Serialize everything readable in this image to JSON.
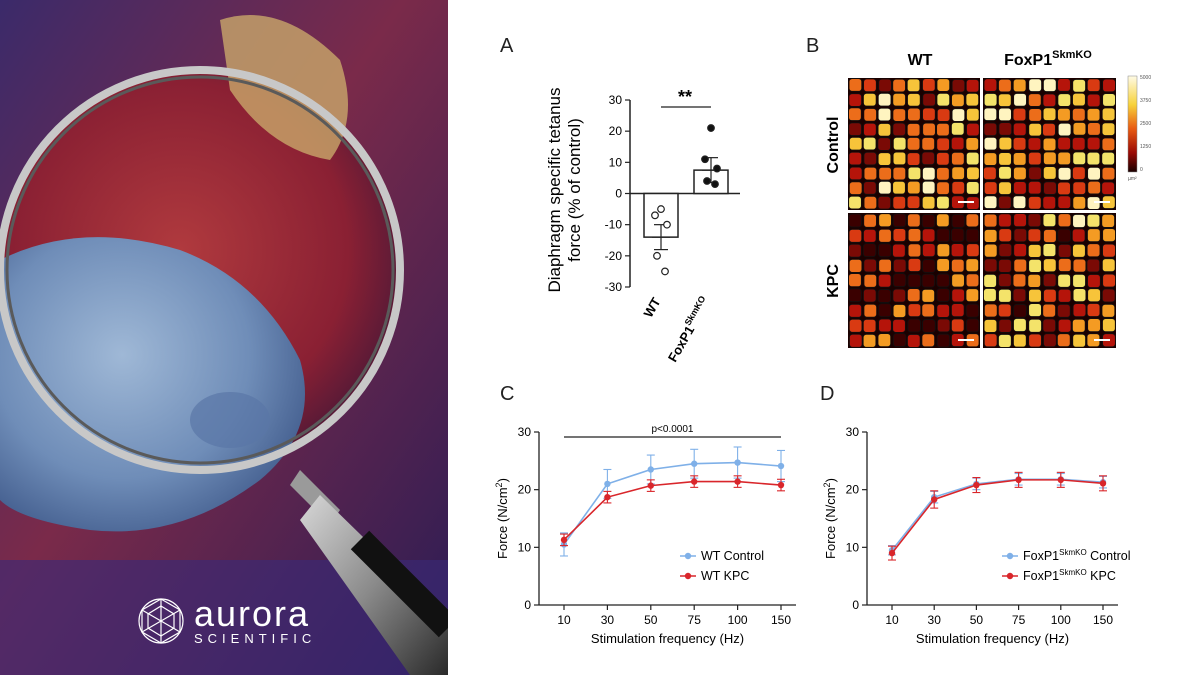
{
  "brand": {
    "name": "aurora",
    "sub": "SCIENTIFIC"
  },
  "colors": {
    "wt_control": "#7fb0e8",
    "wt_kpc": "#d9262b",
    "heat_low": "#2a0000",
    "heat_high": "#fff4c0"
  },
  "panel_letters": [
    "A",
    "B",
    "C",
    "D"
  ],
  "panel_b": {
    "col_labels": [
      "WT",
      "FoxP1"
    ],
    "col_label_sup": "SkmKO",
    "row_labels": [
      "Control",
      "KPC"
    ],
    "colorbar_ticks": [
      "5000",
      "3750",
      "2500",
      "1250",
      "0"
    ],
    "colorbar_unit": "µm²"
  },
  "chart_data": [
    {
      "type": "bar",
      "panel": "A",
      "ylabel_lines": [
        "Diaphragm specific tetanus",
        "force (% of control)"
      ],
      "categories": [
        "WT",
        "FoxP1"
      ],
      "category_sup": [
        "",
        "SkmKO"
      ],
      "values": [
        -14,
        7.5
      ],
      "errors": [
        4,
        4
      ],
      "points": [
        [
          -5,
          -7,
          -10,
          -20,
          -25
        ],
        [
          21,
          11,
          8,
          4,
          3
        ]
      ],
      "point_fill": [
        "#ffffff",
        "#111111"
      ],
      "ylim": [
        -30,
        30
      ],
      "yticks": [
        30,
        20,
        10,
        0,
        -10,
        -20,
        -30
      ],
      "significance": "**"
    },
    {
      "type": "line",
      "panel": "C",
      "xlabel": "Stimulation frequency (Hz)",
      "ylabel": "Force (N/cm",
      "ylabel_sup": "2",
      "ylabel_end": ")",
      "x": [
        "10",
        "30",
        "50",
        "75",
        "100",
        "150"
      ],
      "ylim": [
        0,
        30
      ],
      "yticks": [
        0,
        10,
        20,
        30
      ],
      "annotation": "p<0.0001",
      "legend_position": "bottom-right",
      "series": [
        {
          "name": "WT Control",
          "name_sup": "",
          "name_end": "",
          "color": "#7fb0e8",
          "values": [
            10.5,
            21,
            23.5,
            24.5,
            24.7,
            24.1
          ],
          "errors": [
            2,
            2.5,
            2.5,
            2.5,
            2.7,
            2.7
          ]
        },
        {
          "name": "WT KPC",
          "name_sup": "",
          "name_end": "",
          "color": "#d9262b",
          "values": [
            11.3,
            18.7,
            20.7,
            21.4,
            21.4,
            20.8
          ],
          "errors": [
            1,
            1,
            1,
            1,
            1,
            1
          ]
        }
      ]
    },
    {
      "type": "line",
      "panel": "D",
      "xlabel": "Stimulation frequency (Hz)",
      "ylabel": "Force (N/cm",
      "ylabel_sup": "2",
      "ylabel_end": ")",
      "x": [
        "10",
        "30",
        "50",
        "75",
        "100",
        "150"
      ],
      "ylim": [
        0,
        30
      ],
      "yticks": [
        0,
        10,
        20,
        30
      ],
      "legend_position": "bottom-right",
      "series": [
        {
          "name": "FoxP1",
          "name_sup": "SkmKO",
          "name_end": " Control",
          "color": "#7fb0e8",
          "values": [
            9.5,
            18.7,
            21,
            21.8,
            21.8,
            21.3
          ],
          "errors": [
            0.8,
            1,
            1,
            1,
            1,
            1
          ]
        },
        {
          "name": "FoxP1",
          "name_sup": "SkmKO",
          "name_end": " KPC",
          "color": "#d9262b",
          "values": [
            9,
            18.3,
            20.8,
            21.7,
            21.7,
            21.1
          ],
          "errors": [
            1.2,
            1.5,
            1.3,
            1.3,
            1.3,
            1.3
          ]
        }
      ]
    }
  ]
}
